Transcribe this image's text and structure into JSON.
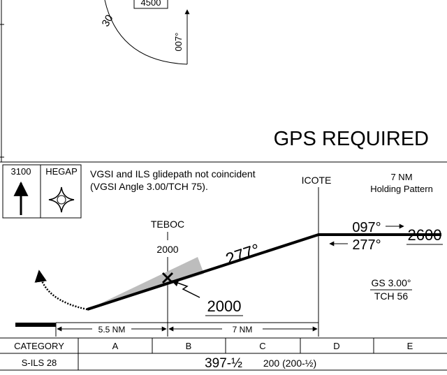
{
  "plan_view": {
    "altitude_box": "4500",
    "radial_label": "30",
    "course": "007°",
    "notice": "GPS REQUIRED"
  },
  "profile": {
    "msa": "3100",
    "fix_name": "HEGAP",
    "note_lines": [
      "VGSI and ILS glidepath not coincident",
      "(VGSI Angle 3.00/TCH 75)."
    ],
    "icote": "ICOTE",
    "holding": [
      "7 NM",
      "Holding Pattern"
    ],
    "teboc": {
      "name": "TEBOC",
      "altitude": "2000"
    },
    "inbound_course": "277°",
    "hold_outbound": "097°",
    "hold_inbound": "277°",
    "hold_altitude": "2600",
    "glideslope_altitude": "2000",
    "gs": "GS 3.00°",
    "tch": "TCH 56",
    "distances": [
      "5.5 NM",
      "7 NM"
    ]
  },
  "minimums": {
    "header": [
      "CATEGORY",
      "A",
      "B",
      "C",
      "D",
      "E"
    ],
    "row": {
      "label": "S-ILS 28",
      "da": "397-½",
      "hat": "200 (200-½)"
    }
  }
}
